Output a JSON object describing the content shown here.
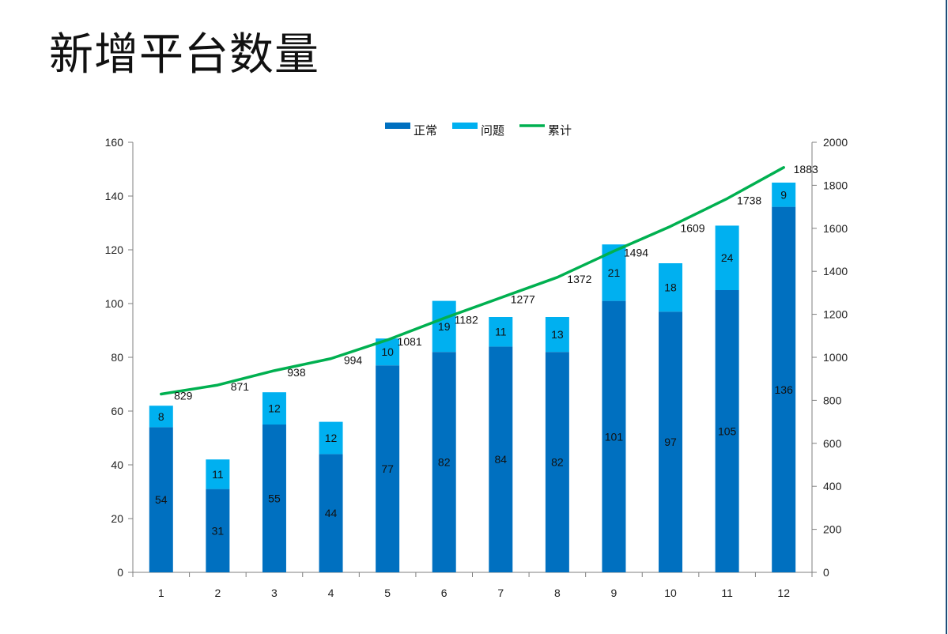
{
  "page": {
    "title": "新增平台数量"
  },
  "chart_data": {
    "type": "bar",
    "stacked": true,
    "categories": [
      "1",
      "2",
      "3",
      "4",
      "5",
      "6",
      "7",
      "8",
      "9",
      "10",
      "11",
      "12"
    ],
    "series": [
      {
        "name": "正常",
        "kind": "bar",
        "axis": "left",
        "color": "#0070c0",
        "values": [
          54,
          31,
          55,
          44,
          77,
          82,
          84,
          82,
          101,
          97,
          105,
          136
        ]
      },
      {
        "name": "问题",
        "kind": "bar",
        "axis": "left",
        "color": "#00b0f0",
        "values": [
          8,
          11,
          12,
          12,
          10,
          19,
          11,
          13,
          21,
          18,
          24,
          9
        ]
      },
      {
        "name": "累计",
        "kind": "line",
        "axis": "right",
        "color": "#00b050",
        "values": [
          829,
          871,
          938,
          994,
          1081,
          1182,
          1277,
          1372,
          1494,
          1609,
          1738,
          1883
        ]
      }
    ],
    "y_left": {
      "min": 0,
      "max": 160,
      "ticks": [
        0,
        20,
        40,
        60,
        80,
        100,
        120,
        140,
        160
      ]
    },
    "y_right": {
      "min": 0,
      "max": 2000,
      "ticks": [
        0,
        200,
        400,
        600,
        800,
        1000,
        1200,
        1400,
        1600,
        1800,
        2000
      ]
    },
    "legend": {
      "position": "top"
    },
    "grid": false
  }
}
